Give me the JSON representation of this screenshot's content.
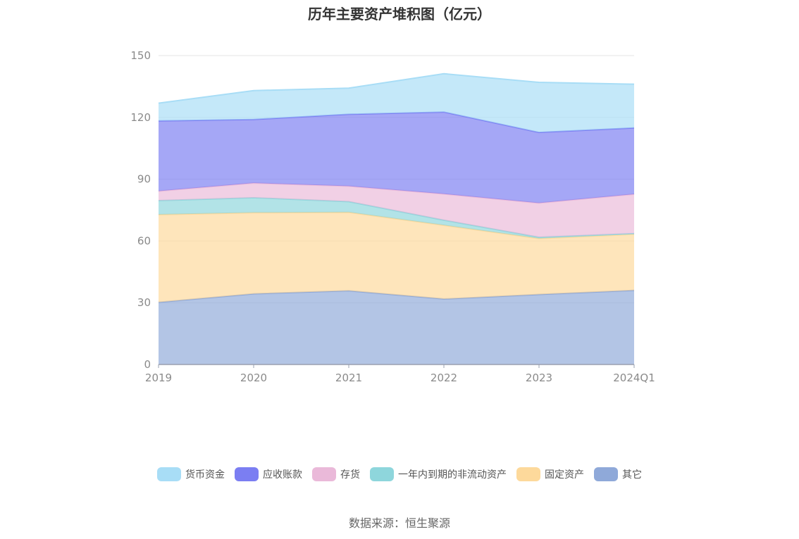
{
  "chart_data": {
    "type": "area",
    "stacked": true,
    "title": "历年主要资产堆积图（亿元）",
    "categories": [
      "2019",
      "2020",
      "2021",
      "2022",
      "2023",
      "2024Q1"
    ],
    "ylim": [
      0,
      150
    ],
    "yticks": [
      0,
      30,
      60,
      90,
      120,
      150
    ],
    "grid": true,
    "legend_position": "bottom",
    "series": [
      {
        "name": "其它",
        "values": [
          30.2,
          34.3,
          35.8,
          31.8,
          34.0,
          36.0
        ],
        "color": "#8fa9d9"
      },
      {
        "name": "固定资产",
        "values": [
          42.6,
          39.4,
          38.1,
          35.8,
          27.2,
          27.3
        ],
        "color": "#fdd99b"
      },
      {
        "name": "一年内到期的非流动资产",
        "values": [
          6.8,
          7.3,
          5.2,
          2.5,
          0.6,
          0.3
        ],
        "color": "#8ed6dc"
      },
      {
        "name": "存货",
        "values": [
          4.6,
          7.1,
          7.5,
          12.7,
          16.6,
          19.1
        ],
        "color": "#eab9d9"
      },
      {
        "name": "应收账款",
        "values": [
          34.1,
          30.9,
          34.9,
          39.8,
          34.3,
          32.2
        ],
        "color": "#7b7ef2"
      },
      {
        "name": "货币资金",
        "values": [
          8.6,
          14.0,
          12.7,
          18.6,
          24.3,
          21.2
        ],
        "color": "#a8ddf6"
      }
    ],
    "legend_order": [
      "货币资金",
      "应收账款",
      "存货",
      "一年内到期的非流动资产",
      "固定资产",
      "其它"
    ]
  },
  "source_text": "数据来源：恒生聚源"
}
